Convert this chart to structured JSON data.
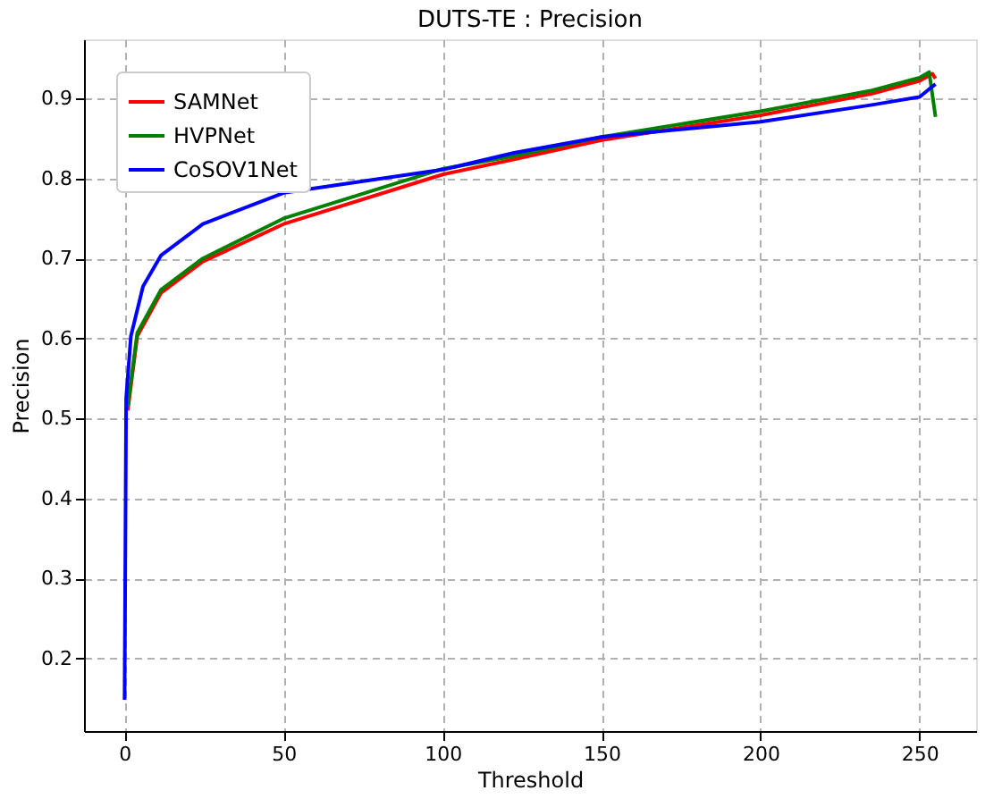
{
  "chart_data": {
    "type": "line",
    "title": "DUTS-TE : Precision",
    "xlabel": "Threshold",
    "ylabel": "Precision",
    "xlim": [
      -12.75,
      267.75
    ],
    "ylim": [
      0.109,
      0.974
    ],
    "xticks": [
      0,
      50,
      100,
      150,
      200,
      250
    ],
    "yticks": [
      0.2,
      0.3,
      0.4,
      0.5,
      0.6,
      0.7,
      0.8,
      0.9
    ],
    "grid": true,
    "legend": "top left",
    "line_style": "solid",
    "marker": "none",
    "series": [
      {
        "name": "SAMNet",
        "color": "#ff0000",
        "x": [
          1,
          4,
          11.5,
          24.6,
          50,
          100,
          122.5,
          150,
          200,
          235,
          250,
          254,
          255
        ],
        "values": [
          0.51,
          0.603,
          0.657,
          0.696,
          0.743,
          0.805,
          0.824,
          0.848,
          0.879,
          0.906,
          0.922,
          0.931,
          0.925
        ]
      },
      {
        "name": "HVPNet",
        "color": "#008000",
        "x": [
          1,
          4,
          11.5,
          24.6,
          50,
          100,
          122.5,
          150,
          200,
          235,
          250,
          253,
          255
        ],
        "values": [
          0.515,
          0.607,
          0.661,
          0.7,
          0.75,
          0.812,
          0.828,
          0.852,
          0.884,
          0.91,
          0.926,
          0.933,
          0.877
        ]
      },
      {
        "name": "CoSOV1Net",
        "color": "#0000ff",
        "x": [
          0,
          0.5,
          2,
          5.8,
          11.5,
          24.6,
          50,
          100,
          122.5,
          150,
          200,
          235,
          250,
          254,
          255
        ],
        "values": [
          0.148,
          0.525,
          0.603,
          0.665,
          0.704,
          0.743,
          0.782,
          0.811,
          0.832,
          0.852,
          0.871,
          0.892,
          0.902,
          0.915,
          0.918
        ]
      }
    ]
  }
}
